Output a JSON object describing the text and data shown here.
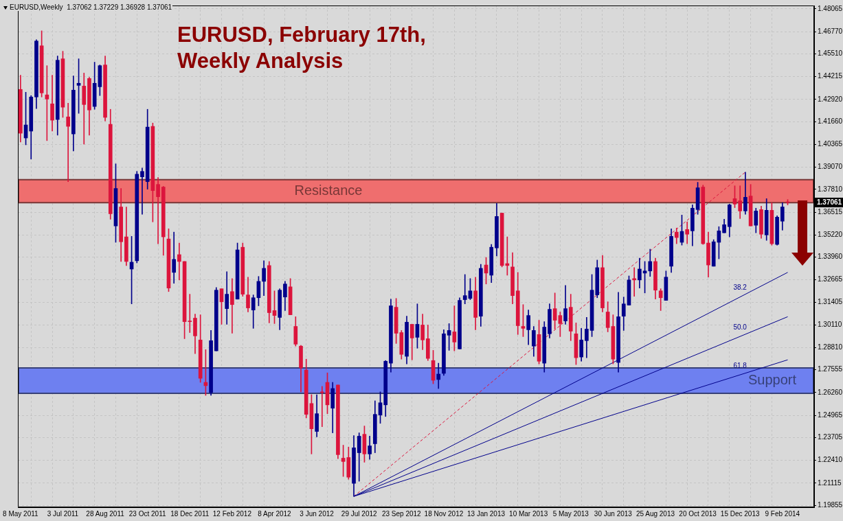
{
  "chart_data": {
    "type": "candlestick",
    "title": "EURUSD, February 17th, Weekly Analysis",
    "annotations": [
      "EURUSD,Weekly  1.37062 1.37229 1.36928 1.37061",
      "38.2",
      "50.0",
      "61.8",
      "1.37061"
    ],
    "categories": [
      "8 May 2011",
      null,
      null,
      null,
      null,
      null,
      null,
      null,
      "3 Jul 2011",
      null,
      null,
      null,
      null,
      null,
      null,
      null,
      "28 Aug 2011",
      null,
      null,
      null,
      null,
      null,
      null,
      null,
      "23 Oct 2011",
      null,
      null,
      null,
      null,
      null,
      null,
      null,
      "18 Dec 2011",
      null,
      null,
      null,
      null,
      null,
      null,
      null,
      "12 Feb 2012",
      null,
      null,
      null,
      null,
      null,
      null,
      null,
      "8 Apr 2012",
      null,
      null,
      null,
      null,
      null,
      null,
      null,
      "3 Jun 2012",
      null,
      null,
      null,
      null,
      null,
      null,
      null,
      "29 Jul 2012",
      null,
      null,
      null,
      null,
      null,
      null,
      null,
      "23 Sep 2012",
      null,
      null,
      null,
      null,
      null,
      null,
      null,
      "18 Nov 2012",
      null,
      null,
      null,
      null,
      null,
      null,
      null,
      "13 Jan 2013",
      null,
      null,
      null,
      null,
      null,
      null,
      null,
      "10 Mar 2013",
      null,
      null,
      null,
      null,
      null,
      null,
      null,
      "5 May 2013",
      null,
      null,
      null,
      null,
      null,
      null,
      null,
      "30 Jun 2013",
      null,
      null,
      null,
      null,
      null,
      null,
      null,
      "25 Aug 2013",
      null,
      null,
      null,
      null,
      null,
      null,
      null,
      "20 Oct 2013",
      null,
      null,
      null,
      null,
      null,
      null,
      null,
      "15 Dec 2013",
      null,
      null,
      null,
      null,
      null,
      null,
      null,
      "9 Feb 2014",
      null
    ],
    "ohlc": [
      [
        1.4349,
        1.443,
        1.405,
        1.41
      ],
      [
        1.4073,
        1.4333,
        1.4034,
        1.4147
      ],
      [
        1.4112,
        1.4314,
        1.3953,
        1.4306
      ],
      [
        1.4306,
        1.4632,
        1.424,
        1.4624
      ],
      [
        1.4597,
        1.4682,
        1.4306,
        1.4329
      ],
      [
        1.4318,
        1.4484,
        1.4058,
        1.4294
      ],
      [
        1.4267,
        1.443,
        1.4112,
        1.4174
      ],
      [
        1.4178,
        1.4539,
        1.4089,
        1.4515
      ],
      [
        1.4523,
        1.4566,
        1.419,
        1.4248
      ],
      [
        1.4193,
        1.4271,
        1.3825,
        1.4139
      ],
      [
        1.4096,
        1.4426,
        1.3999,
        1.4345
      ],
      [
        1.4372,
        1.4523,
        1.4213,
        1.4384
      ],
      [
        1.4368,
        1.4442,
        1.4038,
        1.4263
      ],
      [
        1.4411,
        1.4418,
        1.4089,
        1.4232
      ],
      [
        1.4252,
        1.4504,
        1.4236,
        1.4384
      ],
      [
        1.4364,
        1.4488,
        1.4314,
        1.4484
      ],
      [
        1.4488,
        1.4539,
        1.417,
        1.419
      ],
      [
        1.4151,
        1.4236,
        1.3611,
        1.3642
      ],
      [
        1.3573,
        1.3926,
        1.348,
        1.3786
      ],
      [
        1.3681,
        1.3786,
        1.3371,
        1.3483
      ],
      [
        1.3511,
        1.3681,
        1.3348,
        1.3371
      ],
      [
        1.3328,
        1.3514,
        1.313,
        1.3367
      ],
      [
        1.3375,
        1.3883,
        1.3363,
        1.3867
      ],
      [
        1.3852,
        1.3902,
        1.3639,
        1.3883
      ],
      [
        1.3825,
        1.4236,
        1.3782,
        1.4135
      ],
      [
        1.4139,
        1.4158,
        1.3596,
        1.3774
      ],
      [
        1.3809,
        1.3848,
        1.3472,
        1.3739
      ],
      [
        1.3794,
        1.3798,
        1.3406,
        1.3511
      ],
      [
        1.3499,
        1.3557,
        1.32,
        1.322
      ],
      [
        1.3309,
        1.3538,
        1.3247,
        1.3383
      ],
      [
        1.341,
        1.3476,
        1.3266,
        1.3371
      ],
      [
        1.3371,
        1.3371,
        1.2932,
        1.3029
      ],
      [
        1.3033,
        1.3185,
        1.2967,
        1.3029
      ],
      [
        1.3049,
        1.3072,
        1.2847,
        1.2948
      ],
      [
        1.2925,
        1.3068,
        1.2684,
        1.2707
      ],
      [
        1.2684,
        1.287,
        1.261,
        1.2665
      ],
      [
        1.2626,
        1.2979,
        1.261,
        1.2921
      ],
      [
        1.2863,
        1.3223,
        1.2863,
        1.3208
      ],
      [
        1.3216,
        1.3216,
        1.3014,
        1.3142
      ],
      [
        1.3103,
        1.3313,
        1.3014,
        1.3185
      ],
      [
        1.32,
        1.3274,
        1.2963,
        1.3126
      ],
      [
        1.3157,
        1.3476,
        1.3157,
        1.3437
      ],
      [
        1.3452,
        1.3476,
        1.3173,
        1.3185
      ],
      [
        1.3181,
        1.3282,
        1.3084,
        1.3107
      ],
      [
        1.3095,
        1.3181,
        1.2991,
        1.3165
      ],
      [
        1.3165,
        1.3286,
        1.3119,
        1.3258
      ],
      [
        1.3258,
        1.3375,
        1.3177,
        1.3332
      ],
      [
        1.3348,
        1.3371,
        1.3022,
        1.308
      ],
      [
        1.3092,
        1.3204,
        1.3018,
        1.3064
      ],
      [
        1.3053,
        1.3216,
        1.2983,
        1.3208
      ],
      [
        1.3169,
        1.3258,
        1.3092,
        1.3243
      ],
      [
        1.3227,
        1.3274,
        1.3068,
        1.3068
      ],
      [
        1.3002,
        1.3057,
        1.289,
        1.2901
      ],
      [
        1.289,
        1.2894,
        1.263,
        1.2766
      ],
      [
        1.2754,
        1.2816,
        1.2482,
        1.2502
      ],
      [
        1.2564,
        1.2614,
        1.2277,
        1.242
      ],
      [
        1.2405,
        1.2614,
        1.2374,
        1.2506
      ],
      [
        1.263,
        1.2661,
        1.2432,
        1.2626
      ],
      [
        1.2684,
        1.2738,
        1.2506,
        1.2556
      ],
      [
        1.2537,
        1.2684,
        1.2397,
        1.2649
      ],
      [
        1.2669,
        1.2669,
        1.225,
        1.2273
      ],
      [
        1.2253,
        1.2327,
        1.2149,
        1.2234
      ],
      [
        1.2257,
        1.2316,
        1.2133,
        1.2145
      ],
      [
        1.211,
        1.2381,
        1.2036,
        1.2312
      ],
      [
        1.2284,
        1.2397,
        1.2122,
        1.2378
      ],
      [
        1.2389,
        1.2436,
        1.223,
        1.2277
      ],
      [
        1.2277,
        1.2378,
        1.2246,
        1.2323
      ],
      [
        1.2335,
        1.2579,
        1.2284,
        1.2502
      ],
      [
        1.2498,
        1.263,
        1.2451,
        1.2568
      ],
      [
        1.2556,
        1.2808,
        1.249,
        1.2804
      ],
      [
        1.2793,
        1.3157,
        1.2742,
        1.3119
      ],
      [
        1.3111,
        1.3161,
        1.2905,
        1.2963
      ],
      [
        1.2967,
        1.2979,
        1.2816,
        1.2843
      ],
      [
        1.2832,
        1.306,
        1.2789,
        1.3026
      ],
      [
        1.3014,
        1.3014,
        1.2812,
        1.2936
      ],
      [
        1.294,
        1.313,
        1.2878,
        1.3014
      ],
      [
        1.301,
        1.3072,
        1.287,
        1.2925
      ],
      [
        1.2932,
        1.301,
        1.2808,
        1.282
      ],
      [
        1.2808,
        1.2866,
        1.2676,
        1.2696
      ],
      [
        1.27,
        1.2793,
        1.2649,
        1.2731
      ],
      [
        1.2735,
        1.2983,
        1.2723,
        1.296
      ],
      [
        1.2952,
        1.3018,
        1.2866,
        1.2979
      ],
      [
        1.2971,
        1.3119,
        1.2863,
        1.2913
      ],
      [
        1.2874,
        1.3165,
        1.2874,
        1.315
      ],
      [
        1.3154,
        1.3297,
        1.313,
        1.3177
      ],
      [
        1.3161,
        1.3274,
        1.3154,
        1.3204
      ],
      [
        1.3204,
        1.3282,
        1.2983,
        1.3053
      ],
      [
        1.306,
        1.3355,
        1.3002,
        1.3332
      ],
      [
        1.3351,
        1.3394,
        1.3243,
        1.3305
      ],
      [
        1.3293,
        1.3468,
        1.3251,
        1.3452
      ],
      [
        1.3448,
        1.3701,
        1.3402,
        1.3627
      ],
      [
        1.3646,
        1.3646,
        1.334,
        1.3348
      ],
      [
        1.3359,
        1.3511,
        1.3293,
        1.3348
      ],
      [
        1.334,
        1.3421,
        1.313,
        1.3177
      ],
      [
        1.3204,
        1.3309,
        1.2956,
        1.3006
      ],
      [
        1.3002,
        1.3126,
        1.2944,
        1.2991
      ],
      [
        1.2983,
        1.3095,
        1.2898,
        1.3064
      ],
      [
        1.289,
        1.3002,
        1.2832,
        1.2979
      ],
      [
        1.2956,
        1.3037,
        1.2789,
        1.2804
      ],
      [
        1.2793,
        1.3029,
        1.2742,
        1.2998
      ],
      [
        1.296,
        1.313,
        1.2936,
        1.3099
      ],
      [
        1.3103,
        1.3192,
        1.2987,
        1.3037
      ],
      [
        1.3064,
        1.3084,
        1.2944,
        1.3018
      ],
      [
        1.3033,
        1.3235,
        1.3014,
        1.3103
      ],
      [
        1.3111,
        1.3185,
        1.2921,
        1.2975
      ],
      [
        1.296,
        1.3022,
        1.2785,
        1.2824
      ],
      [
        1.2828,
        1.2991,
        1.2804,
        1.2925
      ],
      [
        1.2921,
        1.3053,
        1.2824,
        1.2987
      ],
      [
        1.2979,
        1.3297,
        1.2944,
        1.3208
      ],
      [
        1.3181,
        1.3379,
        1.3165,
        1.3336
      ],
      [
        1.3336,
        1.3406,
        1.3084,
        1.3107
      ],
      [
        1.3084,
        1.3142,
        1.2971,
        1.2995
      ],
      [
        1.3002,
        1.3068,
        1.2789,
        1.2816
      ],
      [
        1.2797,
        1.3196,
        1.2742,
        1.3057
      ],
      [
        1.306,
        1.3169,
        1.2979,
        1.313
      ],
      [
        1.3123,
        1.3289,
        1.3123,
        1.3266
      ],
      [
        1.3274,
        1.3336,
        1.3173,
        1.3266
      ],
      [
        1.3266,
        1.339,
        1.322,
        1.3328
      ],
      [
        1.3305,
        1.3371,
        1.3192,
        1.3317
      ],
      [
        1.3317,
        1.3441,
        1.3286,
        1.3371
      ],
      [
        1.3371,
        1.339,
        1.3157,
        1.3208
      ],
      [
        1.3204,
        1.3216,
        1.3092,
        1.3165
      ],
      [
        1.315,
        1.3317,
        1.315,
        1.3282
      ],
      [
        1.3344,
        1.3557,
        1.3309,
        1.3514
      ],
      [
        1.3538,
        1.3561,
        1.3472,
        1.3507
      ],
      [
        1.348,
        1.3635,
        1.3464,
        1.3542
      ],
      [
        1.3553,
        1.3596,
        1.3472,
        1.3526
      ],
      [
        1.3545,
        1.3693,
        1.346,
        1.3674
      ],
      [
        1.3666,
        1.3821,
        1.3639,
        1.379
      ],
      [
        1.3794,
        1.3805,
        1.3468,
        1.3472
      ],
      [
        1.3476,
        1.3538,
        1.3282,
        1.3351
      ],
      [
        1.3344,
        1.3495,
        1.3344,
        1.3483
      ],
      [
        1.348,
        1.3569,
        1.3386,
        1.3545
      ],
      [
        1.3534,
        1.3611,
        1.3534,
        1.358
      ],
      [
        1.3569,
        1.3697,
        1.3511,
        1.3693
      ],
      [
        1.3728,
        1.3801,
        1.3677,
        1.3697
      ],
      [
        1.3716,
        1.3801,
        1.3615,
        1.3658
      ],
      [
        1.3658,
        1.3879,
        1.3639,
        1.3736
      ],
      [
        1.3743,
        1.3809,
        1.3573,
        1.3573
      ],
      [
        1.3577,
        1.3674,
        1.3534,
        1.3658
      ],
      [
        1.3666,
        1.3685,
        1.3503,
        1.3526
      ],
      [
        1.3522,
        1.3728,
        1.3491,
        1.3662
      ],
      [
        1.3662,
        1.3705,
        1.3464,
        1.3472
      ],
      [
        1.3468,
        1.3631,
        1.3464,
        1.3623
      ],
      [
        1.36,
        1.3705,
        1.3549,
        1.3681
      ],
      [
        1.37062,
        1.37229,
        1.36928,
        1.37061
      ]
    ],
    "colors": [
      "#dc143c",
      "#00008b",
      "#00008b",
      "#00008b",
      "#dc143c",
      "#dc143c",
      "#dc143c",
      "#00008b",
      "#dc143c",
      "#dc143c",
      "#00008b",
      "#00008b",
      "#dc143c",
      "#dc143c",
      "#00008b",
      "#00008b",
      "#dc143c",
      "#dc143c",
      "#00008b",
      "#dc143c",
      "#dc143c",
      "#00008b",
      "#00008b",
      "#00008b",
      "#00008b",
      "#dc143c",
      "#dc143c",
      "#dc143c",
      "#dc143c",
      "#00008b",
      "#dc143c",
      "#dc143c",
      "#dc143c",
      "#dc143c",
      "#dc143c",
      "#dc143c",
      "#00008b",
      "#00008b",
      "#dc143c",
      "#00008b",
      "#dc143c",
      "#00008b",
      "#dc143c",
      "#dc143c",
      "#00008b",
      "#00008b",
      "#00008b",
      "#dc143c",
      "#dc143c",
      "#00008b",
      "#00008b",
      "#dc143c",
      "#dc143c",
      "#dc143c",
      "#dc143c",
      "#dc143c",
      "#00008b",
      "#dc143c",
      "#dc143c",
      "#00008b",
      "#dc143c",
      "#dc143c",
      "#dc143c",
      "#00008b",
      "#00008b",
      "#dc143c",
      "#00008b",
      "#00008b",
      "#00008b",
      "#00008b",
      "#00008b",
      "#dc143c",
      "#dc143c",
      "#00008b",
      "#dc143c",
      "#00008b",
      "#dc143c",
      "#dc143c",
      "#dc143c",
      "#00008b",
      "#00008b",
      "#00008b",
      "#dc143c",
      "#00008b",
      "#00008b",
      "#00008b",
      "#dc143c",
      "#00008b",
      "#dc143c",
      "#00008b",
      "#00008b",
      "#dc143c",
      "#dc143c",
      "#dc143c",
      "#dc143c",
      "#dc143c",
      "#00008b",
      "#00008b",
      "#dc143c",
      "#00008b",
      "#00008b",
      "#dc143c",
      "#dc143c",
      "#00008b",
      "#dc143c",
      "#dc143c",
      "#00008b",
      "#00008b",
      "#00008b",
      "#00008b",
      "#dc143c",
      "#dc143c",
      "#dc143c",
      "#00008b",
      "#00008b",
      "#00008b",
      "#dc143c",
      "#00008b",
      "#00008b",
      "#00008b",
      "#dc143c",
      "#dc143c",
      "#00008b",
      "#00008b",
      "#dc143c",
      "#00008b",
      "#dc143c",
      "#00008b",
      "#00008b",
      "#dc143c",
      "#dc143c",
      "#00008b",
      "#00008b",
      "#00008b",
      "#00008b",
      "#dc143c",
      "#dc143c",
      "#00008b",
      "#dc143c",
      "#00008b",
      "#dc143c",
      "#00008b",
      "#dc143c",
      "#00008b",
      "#00008b",
      "#dc143c"
    ],
    "series": [
      {
        "type": "line",
        "color": "#00008b",
        "line_style": "solid",
        "values": [
          null,
          null,
          null,
          null,
          null,
          null,
          null,
          null,
          null,
          null,
          null,
          null,
          null,
          null,
          null,
          null,
          null,
          null,
          null,
          null,
          null,
          null,
          null,
          null,
          null,
          null,
          null,
          null,
          null,
          null,
          null,
          null,
          null,
          null,
          null,
          null,
          null,
          null,
          null,
          null,
          null,
          null,
          null,
          null,
          null,
          null,
          null,
          null,
          null,
          null,
          null,
          null,
          null,
          null,
          null,
          null,
          null,
          null,
          null,
          null,
          null,
          null,
          null,
          1.2036,
          null,
          null,
          null,
          null,
          null,
          null,
          null,
          null,
          null,
          null,
          null,
          null,
          null,
          null,
          null,
          null,
          null,
          null,
          null,
          null,
          null,
          null,
          null,
          null,
          null,
          null,
          null,
          null,
          null,
          null,
          null,
          null,
          null,
          null,
          null,
          null,
          null,
          null,
          null,
          null,
          null,
          null,
          null,
          null,
          null,
          null,
          null,
          null,
          null,
          null,
          null,
          null,
          null,
          null,
          null,
          null,
          null,
          null,
          null,
          null,
          null,
          null,
          null,
          null,
          null,
          null,
          null,
          null,
          null,
          null,
          null,
          null,
          null,
          null,
          null,
          null,
          null,
          null,
          null,
          null,
          null,
          1.3309
        ]
      },
      {
        "type": "line",
        "color": "#00008b",
        "line_style": "solid",
        "values": [
          null,
          null,
          null,
          null,
          null,
          null,
          null,
          null,
          null,
          null,
          null,
          null,
          null,
          null,
          null,
          null,
          null,
          null,
          null,
          null,
          null,
          null,
          null,
          null,
          null,
          null,
          null,
          null,
          null,
          null,
          null,
          null,
          null,
          null,
          null,
          null,
          null,
          null,
          null,
          null,
          null,
          null,
          null,
          null,
          null,
          null,
          null,
          null,
          null,
          null,
          null,
          null,
          null,
          null,
          null,
          null,
          null,
          null,
          null,
          null,
          null,
          null,
          null,
          1.2036,
          null,
          null,
          null,
          null,
          null,
          null,
          null,
          null,
          null,
          null,
          null,
          null,
          null,
          null,
          null,
          null,
          null,
          null,
          null,
          null,
          null,
          null,
          null,
          null,
          null,
          null,
          null,
          null,
          null,
          null,
          null,
          null,
          null,
          null,
          null,
          null,
          null,
          null,
          null,
          null,
          null,
          null,
          null,
          null,
          null,
          null,
          null,
          null,
          null,
          null,
          null,
          null,
          null,
          null,
          null,
          null,
          null,
          null,
          null,
          null,
          null,
          null,
          null,
          null,
          null,
          null,
          null,
          null,
          null,
          null,
          null,
          null,
          null,
          null,
          null,
          null,
          null,
          null,
          null,
          null,
          null,
          1.3057
        ]
      },
      {
        "type": "line",
        "color": "#00008b",
        "line_style": "solid",
        "values": [
          null,
          null,
          null,
          null,
          null,
          null,
          null,
          null,
          null,
          null,
          null,
          null,
          null,
          null,
          null,
          null,
          null,
          null,
          null,
          null,
          null,
          null,
          null,
          null,
          null,
          null,
          null,
          null,
          null,
          null,
          null,
          null,
          null,
          null,
          null,
          null,
          null,
          null,
          null,
          null,
          null,
          null,
          null,
          null,
          null,
          null,
          null,
          null,
          null,
          null,
          null,
          null,
          null,
          null,
          null,
          null,
          null,
          null,
          null,
          null,
          null,
          null,
          null,
          1.2036,
          null,
          null,
          null,
          null,
          null,
          null,
          null,
          null,
          null,
          null,
          null,
          null,
          null,
          null,
          null,
          null,
          null,
          null,
          null,
          null,
          null,
          null,
          null,
          null,
          null,
          null,
          null,
          null,
          null,
          null,
          null,
          null,
          null,
          null,
          null,
          null,
          null,
          null,
          null,
          null,
          null,
          null,
          null,
          null,
          null,
          null,
          null,
          null,
          null,
          null,
          null,
          null,
          null,
          null,
          null,
          null,
          null,
          null,
          null,
          null,
          null,
          null,
          null,
          null,
          null,
          null,
          null,
          null,
          null,
          null,
          null,
          null,
          null,
          null,
          null,
          null,
          null,
          null,
          null,
          null,
          null,
          1.2812
        ]
      },
      {
        "type": "line",
        "color": "#dc143c",
        "line_style": "dotted",
        "values": [
          null,
          null,
          null,
          null,
          null,
          null,
          null,
          null,
          null,
          null,
          null,
          null,
          null,
          null,
          null,
          null,
          null,
          null,
          null,
          null,
          null,
          null,
          null,
          null,
          null,
          null,
          null,
          null,
          null,
          null,
          null,
          null,
          null,
          null,
          null,
          null,
          null,
          null,
          null,
          null,
          null,
          null,
          null,
          null,
          null,
          null,
          null,
          null,
          null,
          null,
          null,
          null,
          null,
          null,
          null,
          null,
          null,
          null,
          null,
          null,
          null,
          null,
          null,
          1.2036,
          null,
          null,
          null,
          null,
          null,
          null,
          null,
          null,
          null,
          null,
          null,
          null,
          null,
          null,
          null,
          null,
          null,
          null,
          null,
          null,
          null,
          null,
          null,
          null,
          null,
          null,
          null,
          null,
          null,
          null,
          null,
          null,
          null,
          null,
          null,
          null,
          null,
          null,
          null,
          null,
          null,
          null,
          null,
          null,
          null,
          null,
          null,
          null,
          null,
          null,
          null,
          null,
          null,
          null,
          null,
          null,
          null,
          null,
          null,
          null,
          null,
          null,
          null,
          null,
          null,
          null,
          null,
          null,
          null,
          null,
          null,
          null,
          null,
          1.3879,
          null,
          null,
          null,
          null,
          null,
          null,
          null,
          null
        ]
      }
    ],
    "bands": [
      {
        "axis": "y",
        "from": 1.3705,
        "to": 1.3836,
        "label": "Resistance",
        "color": "#ef6e6e"
      },
      {
        "axis": "y",
        "from": 1.2622,
        "to": 1.2766,
        "label": "Support",
        "color": "#6e80f0"
      }
    ],
    "ylim": [
      1.1974,
      1.4826
    ],
    "yticks": [
      1.48065,
      {
        "value": 1.4677,
        "label": "1.46770"
      },
      {
        "value": 1.4551,
        "label": "1.45510"
      },
      1.44215,
      {
        "value": 1.4292,
        "label": "1.42920"
      },
      {
        "value": 1.4166,
        "label": "1.41660"
      },
      1.40365,
      {
        "value": 1.3907,
        "label": "1.39070"
      },
      {
        "value": 1.3781,
        "label": "1.37810"
      },
      1.36515,
      {
        "value": 1.3522,
        "label": "1.35220"
      },
      {
        "value": 1.3396,
        "label": "1.33960"
      },
      1.32665,
      1.31405,
      {
        "value": 1.3011,
        "label": "1.30110"
      },
      {
        "value": 1.2881,
        "label": "1.28810"
      },
      1.27555,
      {
        "value": 1.2626,
        "label": "1.26260"
      },
      1.24965,
      1.23705,
      {
        "value": 1.2241,
        "label": "1.22410"
      },
      1.21115,
      1.19855
    ],
    "grid": true
  }
}
